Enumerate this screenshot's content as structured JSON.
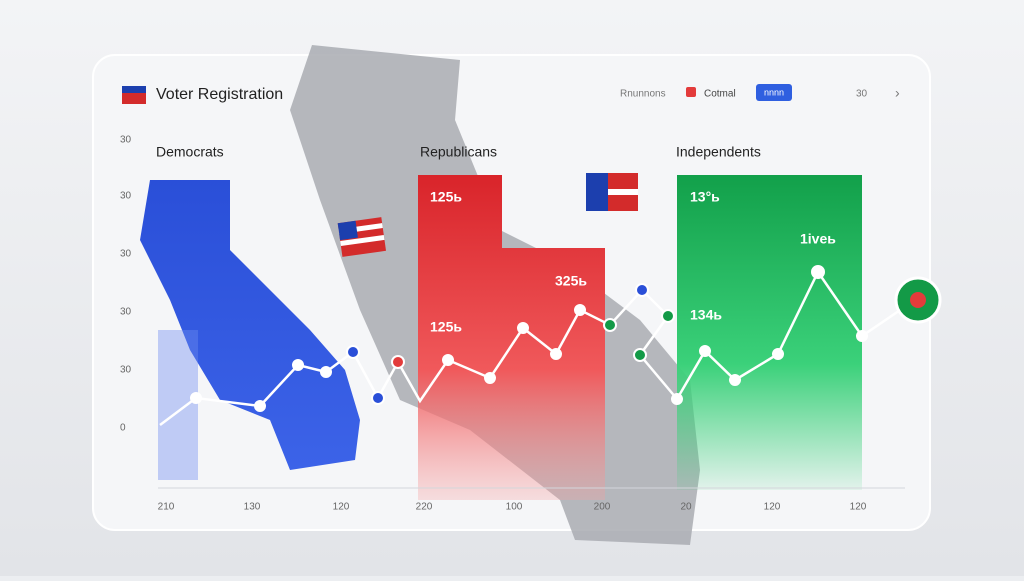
{
  "header": {
    "title": "Voter Registration",
    "links": [
      "Rnunnons",
      "Cotmal",
      "30"
    ],
    "button": "nnnn"
  },
  "sections": [
    {
      "label": "Democrats"
    },
    {
      "label": "Republicans",
      "labels": [
        "125ь",
        "325ь",
        "125ь"
      ]
    },
    {
      "label": "Independents",
      "labels": [
        "13°ь",
        "1iveь",
        "134ь"
      ]
    }
  ],
  "axis": {
    "y": [
      "30",
      "30",
      "30",
      "30",
      "30",
      "0"
    ],
    "x": [
      "210",
      "130",
      "120",
      "220",
      "100",
      "200",
      "20",
      "120",
      "120"
    ]
  }
}
